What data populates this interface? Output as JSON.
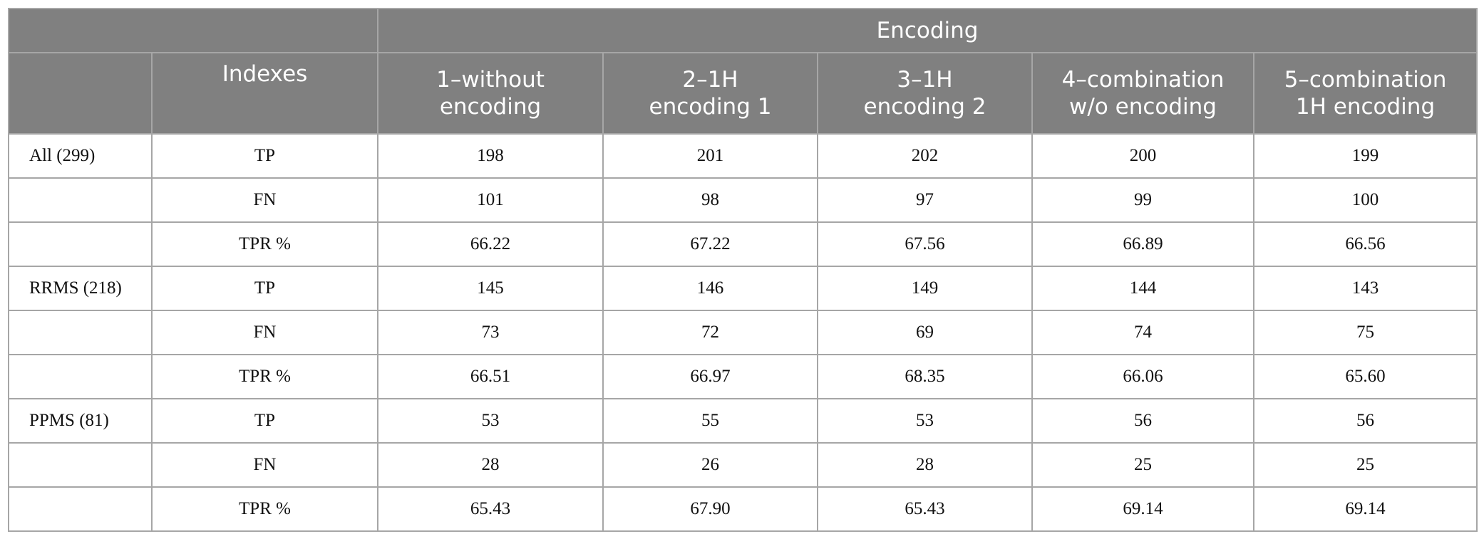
{
  "table": {
    "header": {
      "group": "Encoding",
      "index_label": "Indexes",
      "columns": [
        [
          "1–without",
          "encoding"
        ],
        [
          "2–1H",
          "encoding 1"
        ],
        [
          "3–1H",
          "encoding 2"
        ],
        [
          "4–combination",
          "w/o encoding"
        ],
        [
          "5–combination",
          "1H encoding"
        ]
      ]
    },
    "rows": [
      [
        "All (299)",
        "TP",
        "198",
        "201",
        "202",
        "200",
        "199"
      ],
      [
        null,
        "FN",
        "101",
        "98",
        "97",
        "99",
        "100"
      ],
      [
        null,
        "TPR %",
        "66.22",
        "67.22",
        "67.56",
        "66.89",
        "66.56"
      ],
      [
        "RRMS (218)",
        "TP",
        "145",
        "146",
        "149",
        "144",
        "143"
      ],
      [
        null,
        "FN",
        "73",
        "72",
        "69",
        "74",
        "75"
      ],
      [
        null,
        "TPR %",
        "66.51",
        "66.97",
        "68.35",
        "66.06",
        "65.60"
      ],
      [
        "PPMS (81)",
        "TP",
        "53",
        "55",
        "53",
        "56",
        "56"
      ],
      [
        null,
        "FN",
        "28",
        "26",
        "28",
        "25",
        "25"
      ],
      [
        null,
        "TPR %",
        "65.43",
        "67.90",
        "65.43",
        "69.14",
        "69.14"
      ]
    ]
  }
}
